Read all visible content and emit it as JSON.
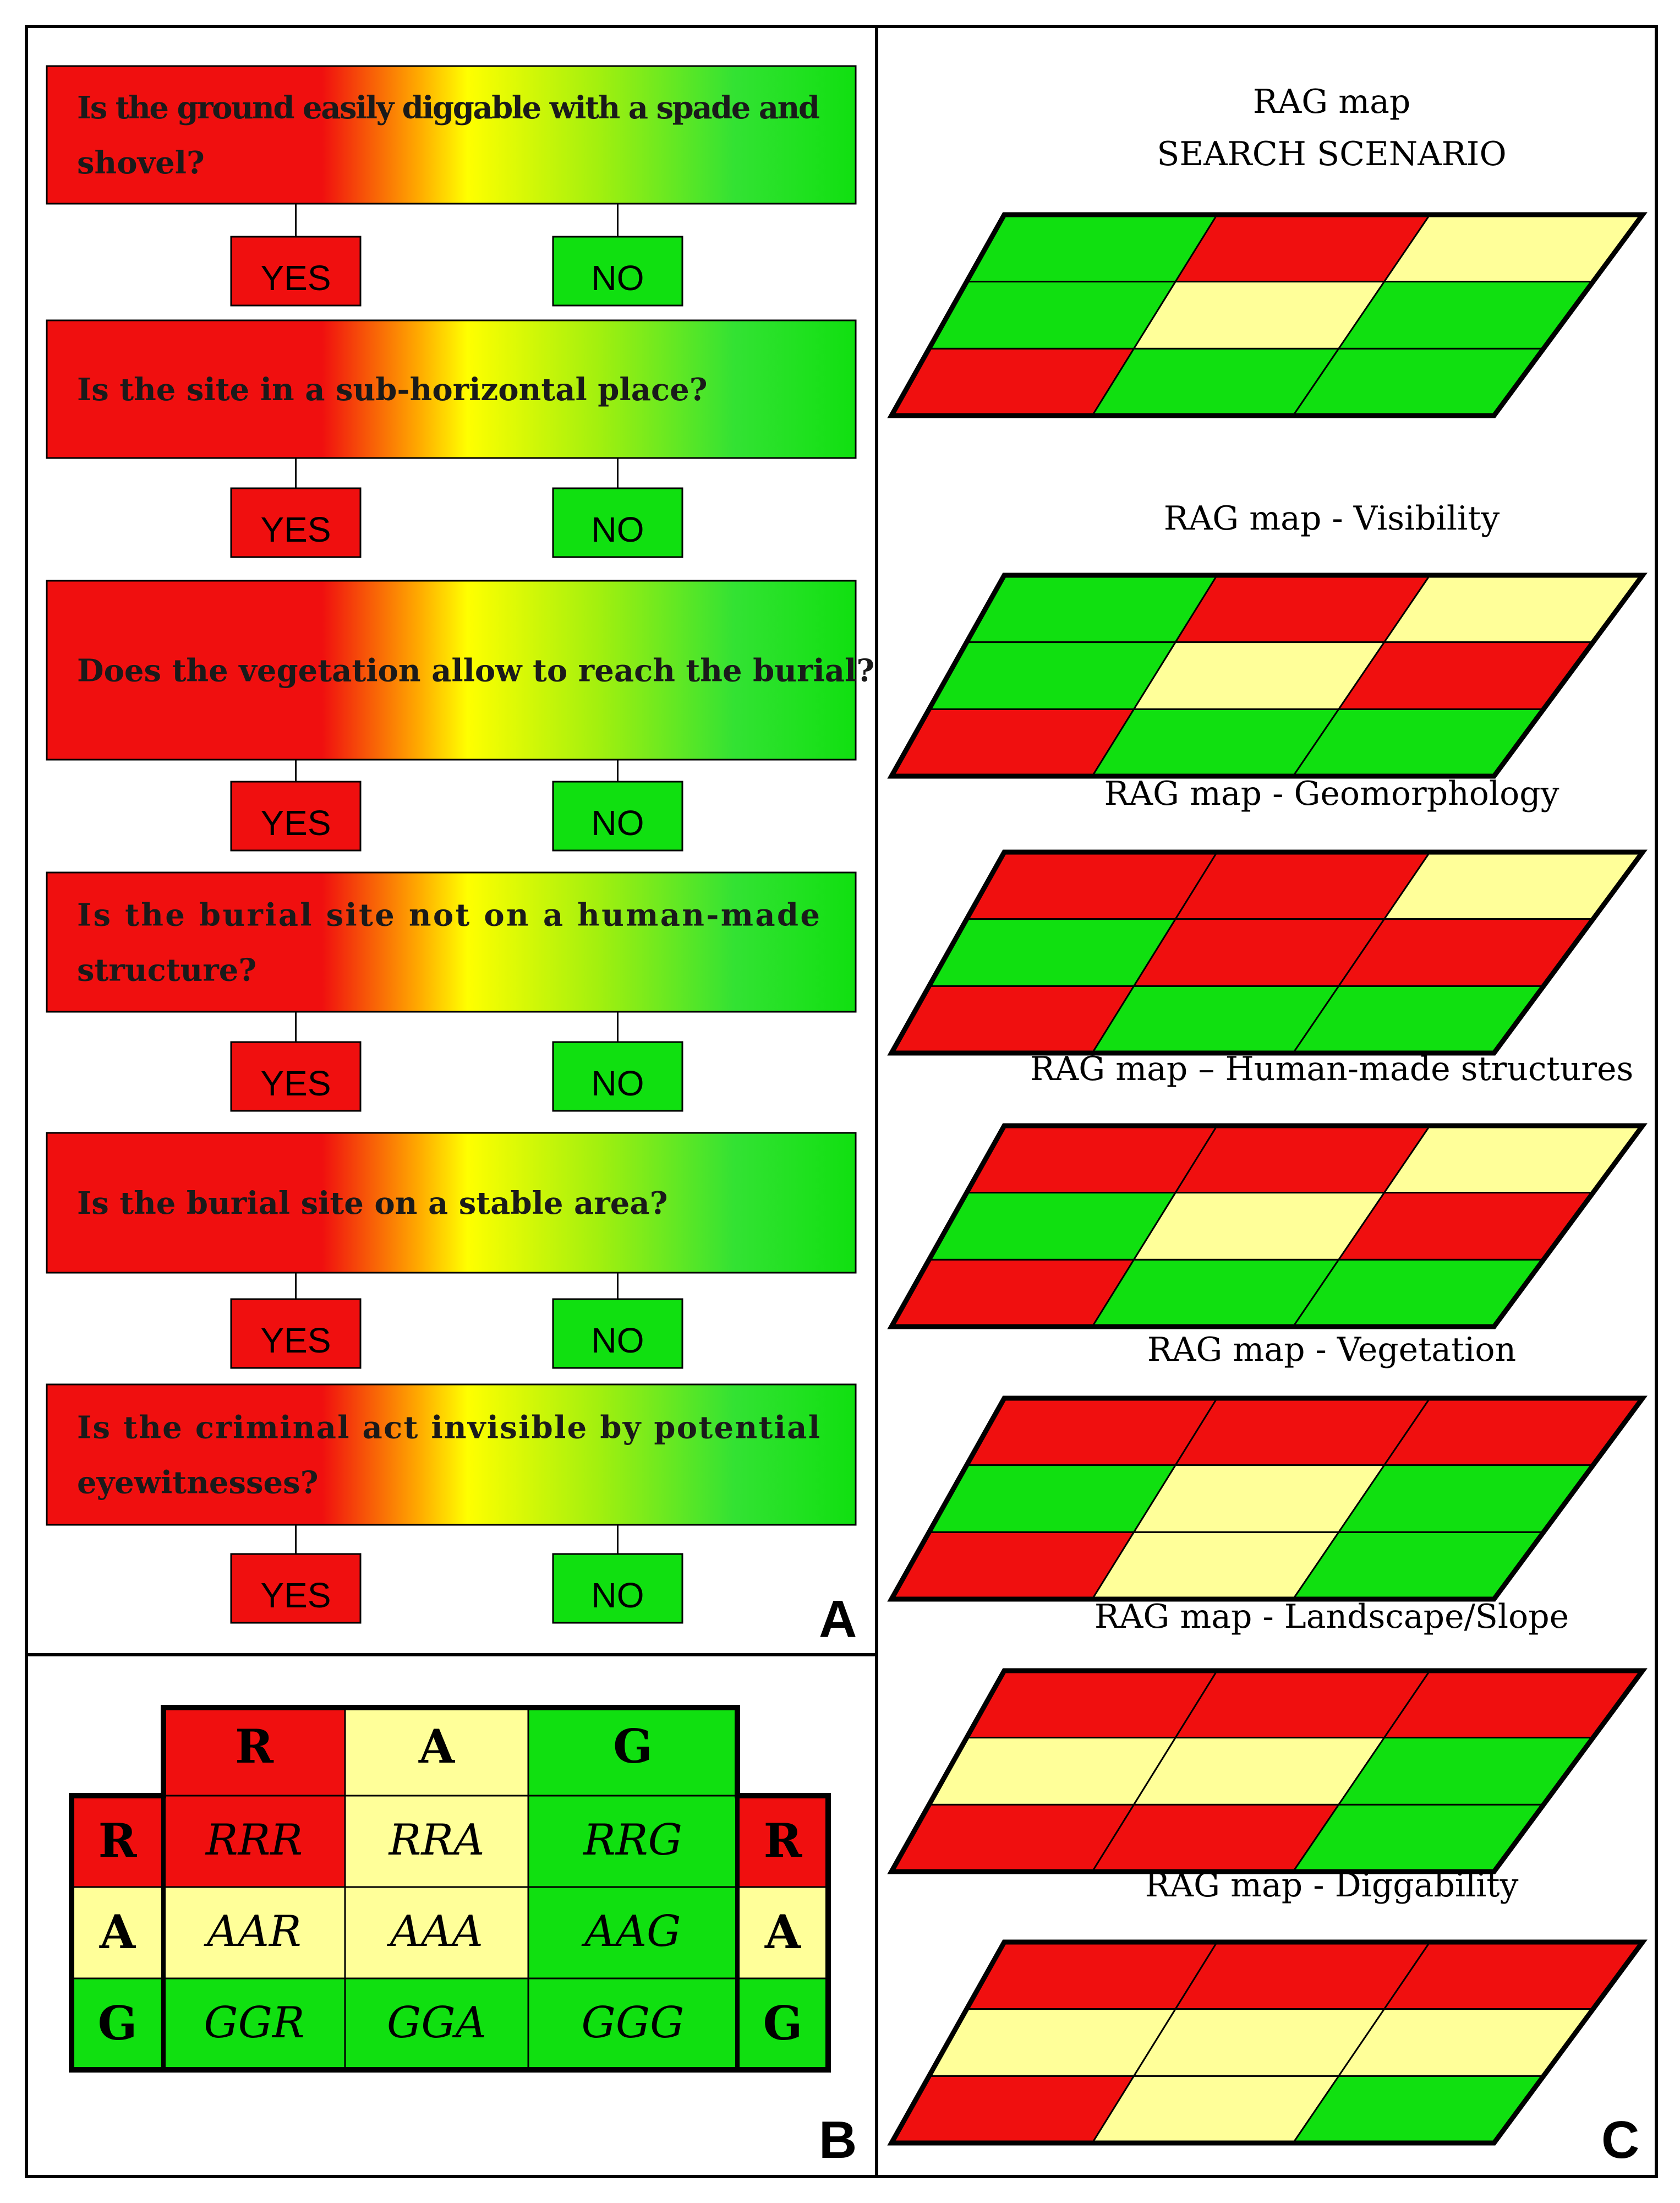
{
  "colors": {
    "red": "#f00f0f",
    "amber": "#ffff99",
    "green": "#10e010",
    "grad_yellow": "#ffff00",
    "border": "#000000"
  },
  "panel_a": {
    "label": "A",
    "questions": [
      {
        "lines": [
          "Is the ground easily diggable with a spade and",
          "shovel?"
        ],
        "yes": "YES",
        "no": "NO"
      },
      {
        "lines": [
          "Is the site in a sub-horizontal place?"
        ],
        "yes": "YES",
        "no": "NO"
      },
      {
        "lines": [
          "Does the vegetation allow to reach the burial?"
        ],
        "yes": "YES",
        "no": "NO"
      },
      {
        "lines": [
          "Is the burial site not on a human-made",
          "structure?"
        ],
        "yes": "YES",
        "no": "NO"
      },
      {
        "lines": [
          "Is the burial site on a stable area?"
        ],
        "yes": "YES",
        "no": "NO"
      },
      {
        "lines": [
          "Is the criminal act invisible by potential",
          "eyewitnesses?"
        ],
        "yes": "YES",
        "no": "NO"
      }
    ]
  },
  "panel_b": {
    "label": "B",
    "col_headers": [
      "R",
      "A",
      "G"
    ],
    "row_headers": [
      "R",
      "A",
      "G"
    ],
    "cells": [
      [
        "RRR",
        "RRA",
        "RRG"
      ],
      [
        "AAR",
        "AAA",
        "AAG"
      ],
      [
        "GGR",
        "GGA",
        "GGG"
      ]
    ],
    "cell_colors": [
      [
        "R",
        "A",
        "G"
      ],
      [
        "A",
        "A",
        "G"
      ],
      [
        "G",
        "G",
        "G"
      ]
    ]
  },
  "panel_c": {
    "label": "C",
    "maps": [
      {
        "title": [
          "RAG map",
          "SEARCH SCENARIO"
        ],
        "grid": [
          [
            "G",
            "R",
            "A"
          ],
          [
            "G",
            "A",
            "G"
          ],
          [
            "R",
            "G",
            "G"
          ]
        ]
      },
      {
        "title": [
          "RAG map - Visibility"
        ],
        "grid": [
          [
            "G",
            "R",
            "A"
          ],
          [
            "G",
            "A",
            "R"
          ],
          [
            "R",
            "G",
            "G"
          ]
        ]
      },
      {
        "title": [
          "RAG map - Geomorphology"
        ],
        "grid": [
          [
            "R",
            "R",
            "A"
          ],
          [
            "G",
            "R",
            "R"
          ],
          [
            "R",
            "G",
            "G"
          ]
        ]
      },
      {
        "title": [
          "RAG map – Human-made structures"
        ],
        "grid": [
          [
            "R",
            "R",
            "A"
          ],
          [
            "G",
            "A",
            "R"
          ],
          [
            "R",
            "G",
            "G"
          ]
        ]
      },
      {
        "title": [
          "RAG map - Vegetation"
        ],
        "grid": [
          [
            "R",
            "R",
            "R"
          ],
          [
            "G",
            "A",
            "G"
          ],
          [
            "R",
            "A",
            "G"
          ]
        ]
      },
      {
        "title": [
          "RAG map - Landscape/Slope"
        ],
        "grid": [
          [
            "R",
            "R",
            "R"
          ],
          [
            "A",
            "A",
            "G"
          ],
          [
            "R",
            "R",
            "G"
          ]
        ]
      },
      {
        "title": [
          "RAG map - Diggability"
        ],
        "grid": [
          [
            "R",
            "R",
            "R"
          ],
          [
            "A",
            "A",
            "A"
          ],
          [
            "R",
            "A",
            "G"
          ]
        ]
      }
    ]
  }
}
